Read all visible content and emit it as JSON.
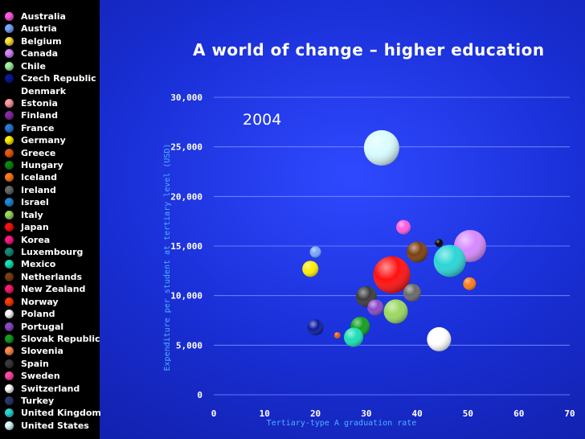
{
  "slide": {
    "title": "A world of change – higher education"
  },
  "chart_data": {
    "type": "scatter",
    "title": "A world of change – higher education",
    "annotation": "2004",
    "xlabel": "Tertiary-type A graduation rate",
    "ylabel": "Expenditure per student at tertiary level (USD)",
    "xlim": [
      0,
      70
    ],
    "ylim": [
      0,
      30000
    ],
    "x_ticks": [
      "0",
      "10",
      "20",
      "30",
      "40",
      "50",
      "60",
      "70"
    ],
    "y_ticks": [
      "0",
      "5,000",
      "10,000",
      "15,000",
      "20,000",
      "25,000",
      "30,000"
    ],
    "grid": "horizontal",
    "legend_position": "left",
    "series": [
      {
        "name": "Australia",
        "color": "#ff5adf"
      },
      {
        "name": "Austria",
        "color": "#7aa6ff"
      },
      {
        "name": "Belgium",
        "color": "#ffe23a"
      },
      {
        "name": "Canada",
        "color": "#d688ff"
      },
      {
        "name": "Chile",
        "color": "#9df2a0"
      },
      {
        "name": "Czech Republic",
        "color": "#0a1a9a"
      },
      {
        "name": "Denmark",
        "color": "#000000"
      },
      {
        "name": "Estonia",
        "color": "#ff9aa4"
      },
      {
        "name": "Finland",
        "color": "#8a2aa6"
      },
      {
        "name": "France",
        "color": "#2a7ad6"
      },
      {
        "name": "Germany",
        "color": "#ffee00"
      },
      {
        "name": "Greece",
        "color": "#e85a10"
      },
      {
        "name": "Hungary",
        "color": "#0b8a14"
      },
      {
        "name": "Iceland",
        "color": "#ff7a18"
      },
      {
        "name": "Ireland",
        "color": "#6a6a6a"
      },
      {
        "name": "Israel",
        "color": "#1e8ad8"
      },
      {
        "name": "Italy",
        "color": "#9ad860"
      },
      {
        "name": "Japan",
        "color": "#ff1010"
      },
      {
        "name": "Korea",
        "color": "#ff1a84"
      },
      {
        "name": "Luxembourg",
        "color": "#1a8a7a"
      },
      {
        "name": "Mexico",
        "color": "#1ae0b4"
      },
      {
        "name": "Netherlands",
        "color": "#7a4010"
      },
      {
        "name": "New Zealand",
        "color": "#ff1a6a"
      },
      {
        "name": "Norway",
        "color": "#ff3a00"
      },
      {
        "name": "Poland",
        "color": "#ffffff"
      },
      {
        "name": "Portugal",
        "color": "#8a4ac6"
      },
      {
        "name": "Slovak Republic",
        "color": "#10a020"
      },
      {
        "name": "Slovenia",
        "color": "#ff8a4a"
      },
      {
        "name": "Spain",
        "color": "#3a3a3a"
      },
      {
        "name": "Sweden",
        "color": "#ff4aa6"
      },
      {
        "name": "Switzerland",
        "color": "#ffffff"
      },
      {
        "name": "Turkey",
        "color": "#2a3a6a"
      },
      {
        "name": "United Kingdom",
        "color": "#2ad6d6"
      },
      {
        "name": "United States",
        "color": "#d8fcff"
      }
    ],
    "bubbles": [
      {
        "x": 33.0,
        "y": 24900,
        "r": 22,
        "color": "#d8fcff"
      },
      {
        "x": 37.3,
        "y": 16900,
        "r": 9,
        "color": "#ff5adf"
      },
      {
        "x": 44.3,
        "y": 15300,
        "r": 5,
        "color": "#000000"
      },
      {
        "x": 50.4,
        "y": 15000,
        "r": 20,
        "color": "#d688ff"
      },
      {
        "x": 40.0,
        "y": 14400,
        "r": 13,
        "color": "#7a4010"
      },
      {
        "x": 46.4,
        "y": 13500,
        "r": 20,
        "color": "#2ad6d6"
      },
      {
        "x": 20.0,
        "y": 14400,
        "r": 7,
        "color": "#7aa6ff"
      },
      {
        "x": 19.0,
        "y": 12700,
        "r": 10,
        "color": "#ffee00"
      },
      {
        "x": 35.0,
        "y": 12100,
        "r": 23,
        "color": "#ff1010"
      },
      {
        "x": 50.3,
        "y": 11200,
        "r": 8,
        "color": "#ff7a18"
      },
      {
        "x": 39.0,
        "y": 10300,
        "r": 11,
        "color": "#6a6a6a"
      },
      {
        "x": 30.0,
        "y": 9900,
        "r": 13,
        "color": "#3a3a3a"
      },
      {
        "x": 31.8,
        "y": 8800,
        "r": 10,
        "color": "#8a4ac6"
      },
      {
        "x": 35.8,
        "y": 8400,
        "r": 15,
        "color": "#9ad860"
      },
      {
        "x": 20.0,
        "y": 6800,
        "r": 10,
        "color": "#0a1a9a"
      },
      {
        "x": 28.8,
        "y": 6900,
        "r": 12,
        "color": "#10a020"
      },
      {
        "x": 24.3,
        "y": 6000,
        "r": 4,
        "color": "#e85a10"
      },
      {
        "x": 27.5,
        "y": 5800,
        "r": 12,
        "color": "#1ae0b4"
      },
      {
        "x": 44.3,
        "y": 5600,
        "r": 15,
        "color": "#ffffff"
      }
    ]
  }
}
